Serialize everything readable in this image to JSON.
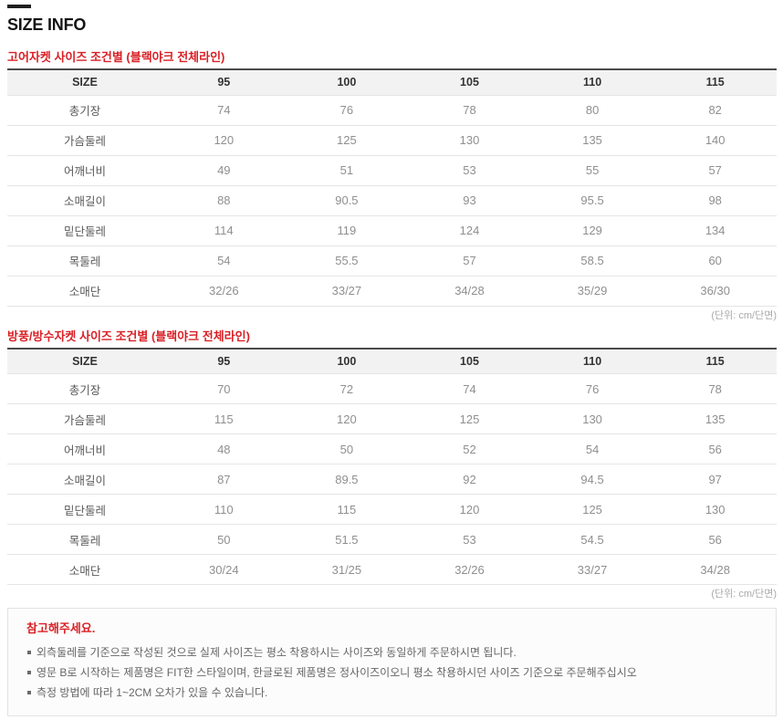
{
  "page": {
    "title": "SIZE INFO"
  },
  "colors": {
    "accent_red": "#d92025",
    "header_bg": "#f2f2f2",
    "table_top_border": "#4a4a4a",
    "row_line": "#e5e5e5",
    "label_color": "#5a5a5a",
    "value_color": "#8f8f8f",
    "note_color": "#a9a9a9",
    "notice_text": "#666666"
  },
  "tables": [
    {
      "title": "고어자켓 사이즈 조건별 (블랙야크 전체라인)",
      "unit_note": "(단위: cm/단면)",
      "columns": [
        "SIZE",
        "95",
        "100",
        "105",
        "110",
        "115"
      ],
      "rows": [
        {
          "label": "총기장",
          "values": [
            "74",
            "76",
            "78",
            "80",
            "82"
          ]
        },
        {
          "label": "가슴둘레",
          "values": [
            "120",
            "125",
            "130",
            "135",
            "140"
          ]
        },
        {
          "label": "어깨너비",
          "values": [
            "49",
            "51",
            "53",
            "55",
            "57"
          ]
        },
        {
          "label": "소매길이",
          "values": [
            "88",
            "90.5",
            "93",
            "95.5",
            "98"
          ]
        },
        {
          "label": "밑단둘레",
          "values": [
            "114",
            "119",
            "124",
            "129",
            "134"
          ]
        },
        {
          "label": "목둘레",
          "values": [
            "54",
            "55.5",
            "57",
            "58.5",
            "60"
          ]
        },
        {
          "label": "소매단",
          "values": [
            "32/26",
            "33/27",
            "34/28",
            "35/29",
            "36/30"
          ]
        }
      ]
    },
    {
      "title": "방풍/방수자켓 사이즈 조건별 (블랙야크 전체라인)",
      "unit_note": "(단위: cm/단면)",
      "columns": [
        "SIZE",
        "95",
        "100",
        "105",
        "110",
        "115"
      ],
      "rows": [
        {
          "label": "총기장",
          "values": [
            "70",
            "72",
            "74",
            "76",
            "78"
          ]
        },
        {
          "label": "가슴둘레",
          "values": [
            "115",
            "120",
            "125",
            "130",
            "135"
          ]
        },
        {
          "label": "어깨너비",
          "values": [
            "48",
            "50",
            "52",
            "54",
            "56"
          ]
        },
        {
          "label": "소매길이",
          "values": [
            "87",
            "89.5",
            "92",
            "94.5",
            "97"
          ]
        },
        {
          "label": "밑단둘레",
          "values": [
            "110",
            "115",
            "120",
            "125",
            "130"
          ]
        },
        {
          "label": "목둘레",
          "values": [
            "50",
            "51.5",
            "53",
            "54.5",
            "56"
          ]
        },
        {
          "label": "소매단",
          "values": [
            "30/24",
            "31/25",
            "32/26",
            "33/27",
            "34/28"
          ]
        }
      ]
    }
  ],
  "notice": {
    "heading": "참고해주세요.",
    "items": [
      "외측둘레를 기준으로 작성된 것으로 실제 사이즈는 평소 착용하시는 사이즈와 동일하게 주문하시면 됩니다.",
      "영문 B로 시작하는 제품명은 FIT한 스타일이며, 한글로된 제품명은 정사이즈이오니 평소 착용하시던 사이즈 기준으로 주문해주십시오",
      "측정 방법에 따라 1~2CM 오차가 있을 수 있습니다."
    ]
  }
}
